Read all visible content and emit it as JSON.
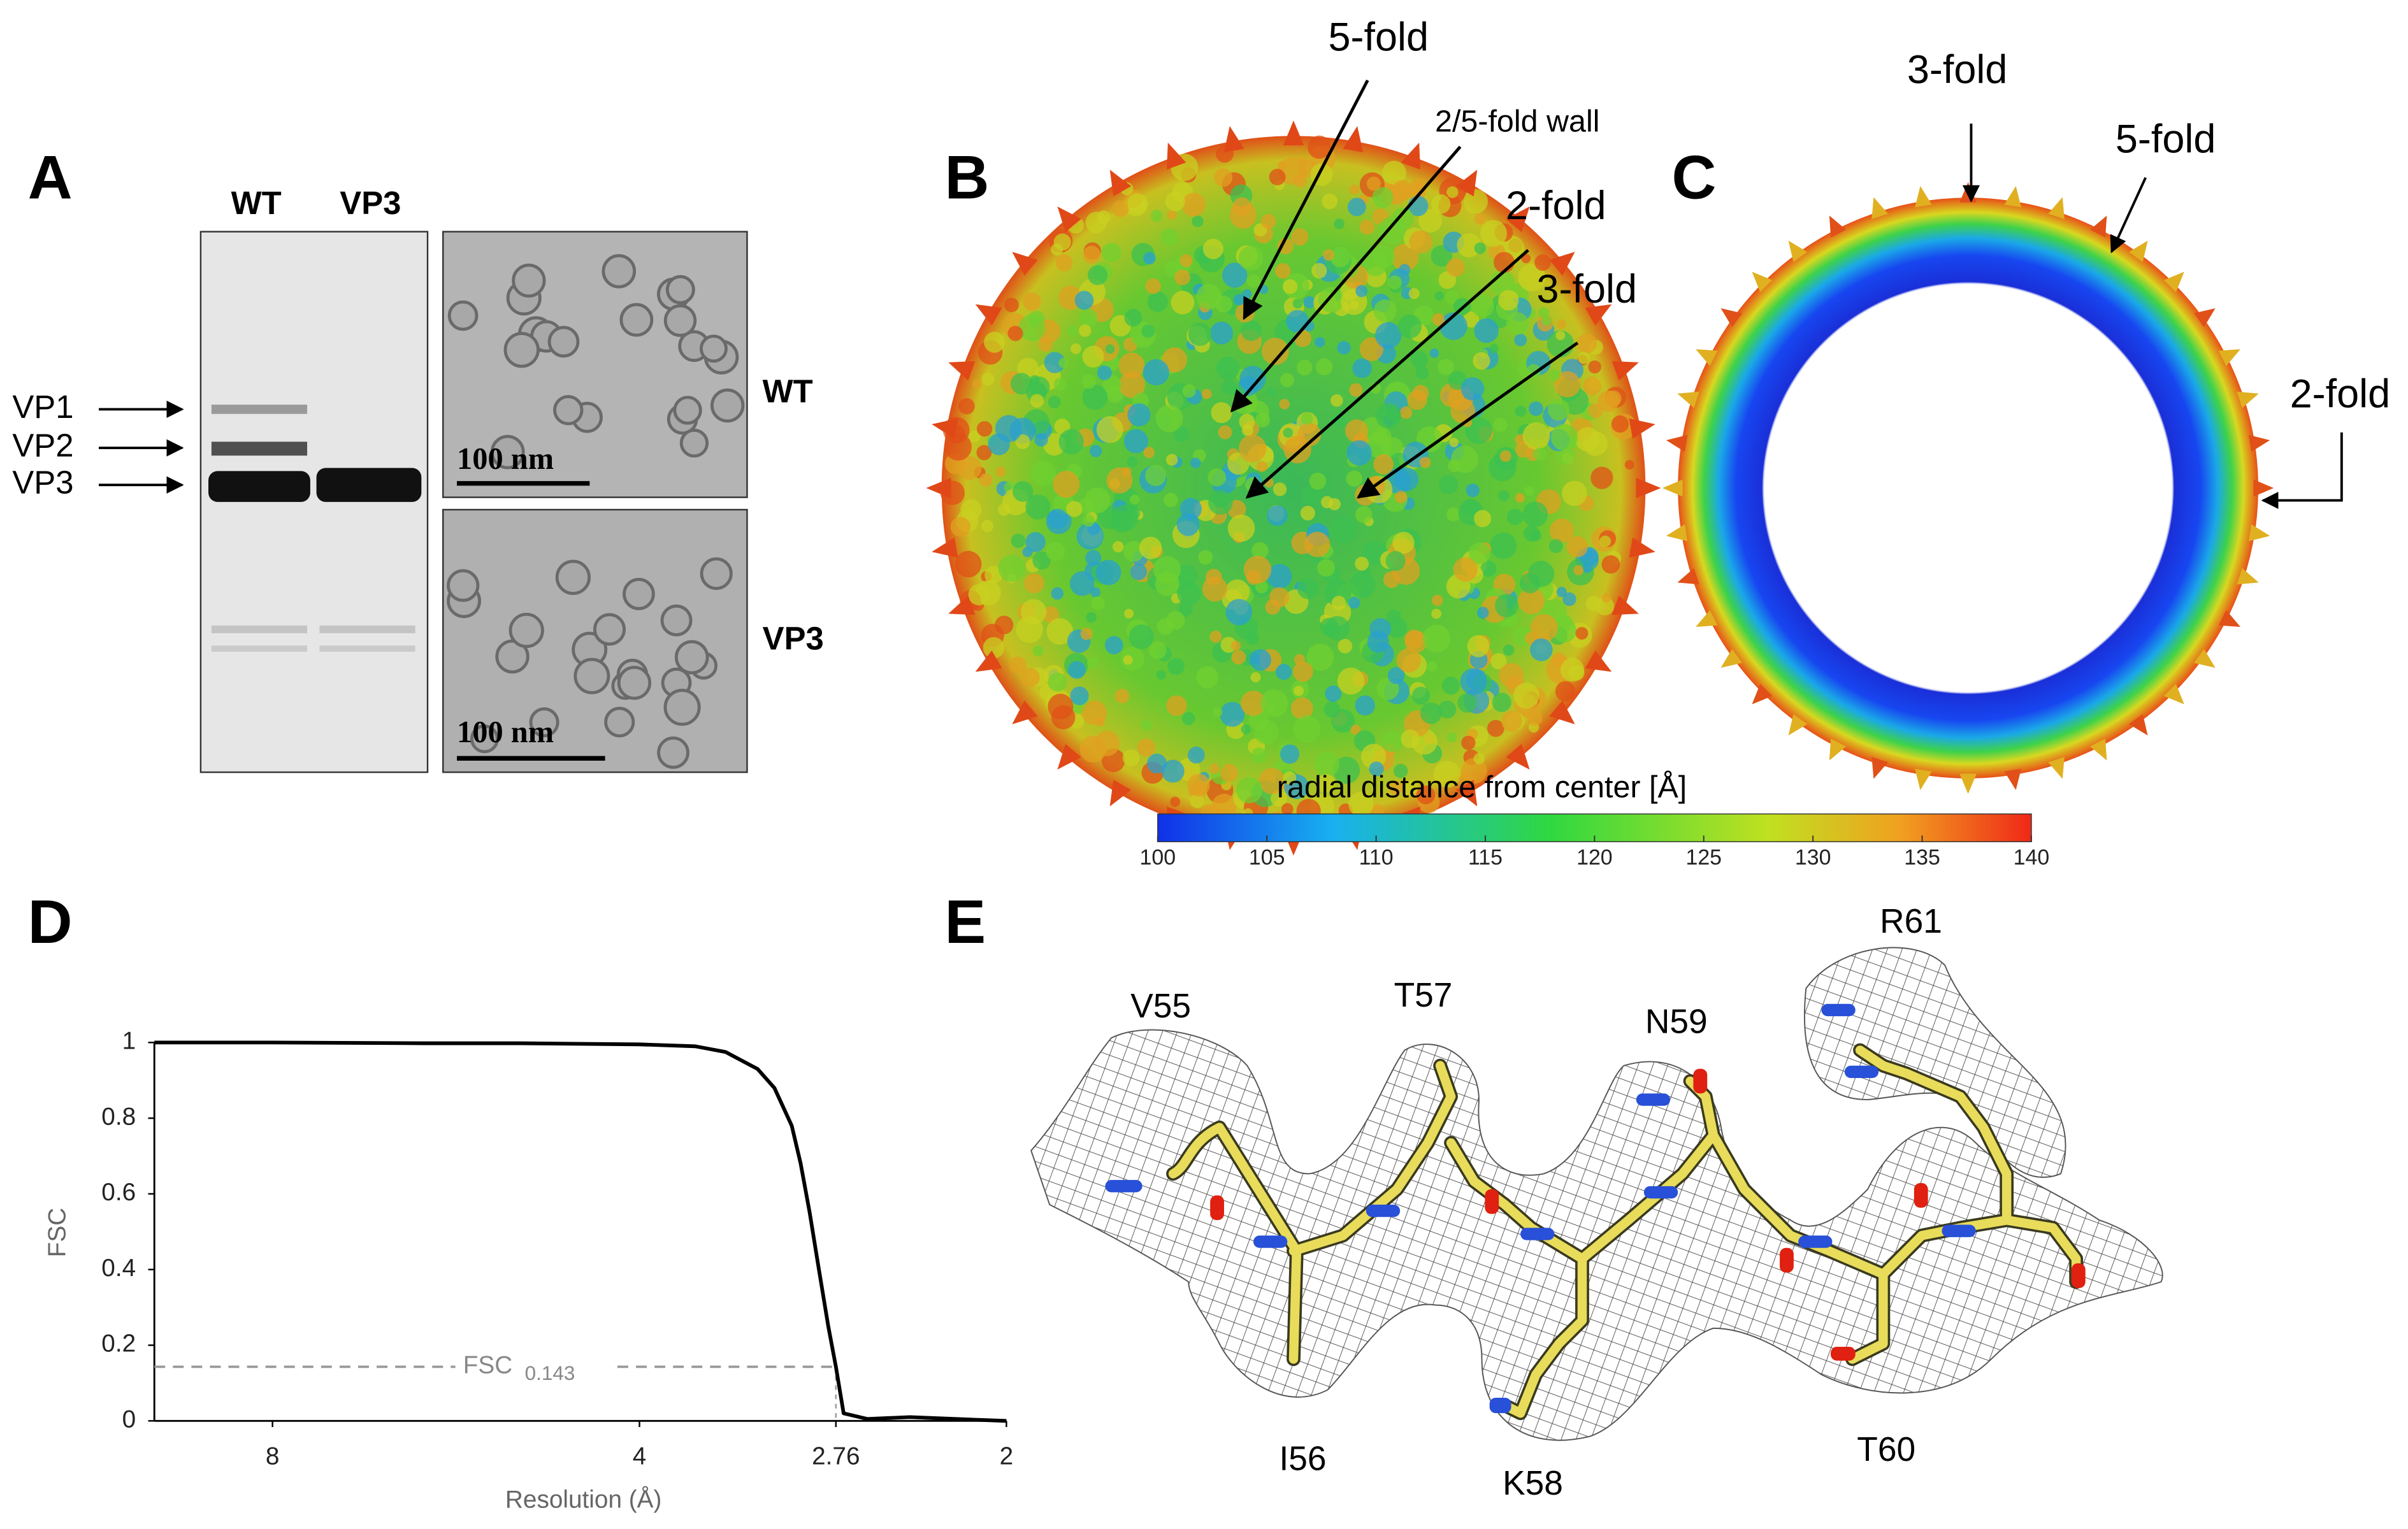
{
  "panel_labels": [
    "A",
    "B",
    "C",
    "D",
    "E"
  ],
  "panel_a": {
    "lanes": [
      "WT",
      "VP3"
    ],
    "bands": [
      "VP1",
      "VP2",
      "VP3"
    ],
    "micrographs": [
      "WT",
      "VP3"
    ],
    "scale_bar": "100 nm"
  },
  "panel_b": {
    "annotations": [
      "5-fold",
      "2/5-fold wall",
      "2-fold",
      "3-fold"
    ]
  },
  "panel_c": {
    "annotations": [
      "3-fold",
      "5-fold",
      "2-fold"
    ]
  },
  "colorbar": {
    "title": "radial distance from center [Å]",
    "lim": [
      100,
      140
    ],
    "ticks": [
      100,
      105,
      110,
      115,
      120,
      125,
      130,
      135,
      140
    ]
  },
  "panel_e": {
    "residues": [
      "V55",
      "I56",
      "T57",
      "K58",
      "N59",
      "T60",
      "R61"
    ]
  },
  "chart_data": {
    "type": "line",
    "xlabel": "Resolution (Å)",
    "ylabel": "FSC",
    "x": [
      10,
      8,
      6,
      5,
      4,
      3.6,
      3.4,
      3.2,
      3.1,
      3.0,
      2.95,
      2.9,
      2.85,
      2.8,
      2.76,
      2.72,
      2.6,
      2.4,
      2.2,
      2
    ],
    "values": [
      1,
      1,
      0.998,
      0.998,
      0.995,
      0.99,
      0.975,
      0.93,
      0.88,
      0.78,
      0.68,
      0.55,
      0.4,
      0.25,
      0.143,
      0.02,
      0.005,
      0.01,
      0.005,
      0
    ],
    "color": "#000000",
    "xlim": [
      10,
      2
    ],
    "xticks": [
      8,
      4,
      2.76,
      2
    ],
    "x_log": true,
    "ylim": [
      0,
      1
    ],
    "yticks": [
      0,
      0.2,
      0.4,
      0.6,
      0.8,
      1
    ],
    "threshold": 0.143,
    "threshold_label": "FSC"
  }
}
